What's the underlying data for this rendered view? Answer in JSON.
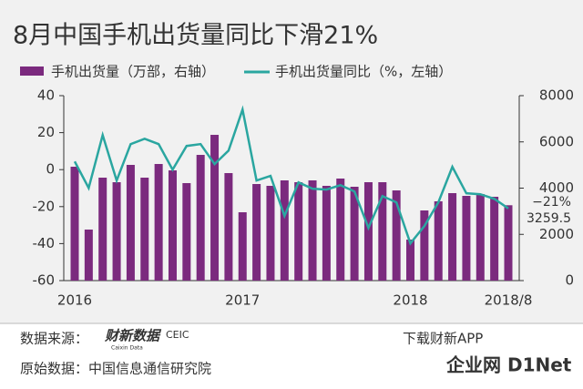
{
  "chart_data": {
    "type": "bar_line",
    "title": "8月中国手机出货量同比下滑21%",
    "categories": [
      "2016",
      null,
      null,
      null,
      null,
      null,
      null,
      null,
      null,
      null,
      null,
      null,
      "2017",
      null,
      null,
      null,
      null,
      null,
      null,
      null,
      null,
      null,
      null,
      null,
      "2018",
      null,
      null,
      null,
      null,
      null,
      null,
      "2018/8"
    ],
    "series": [
      {
        "name": "手机出货量（万部，右轴）",
        "type": "bar",
        "axis": "y2",
        "color": "#7b2a7e",
        "values": [
          4926,
          2207,
          4453,
          4256,
          5005,
          4453,
          5044,
          4768,
          4217,
          5438,
          6305,
          4650,
          2956,
          4177,
          4099,
          4335,
          4256,
          4335,
          4099,
          4414,
          4059,
          4256,
          4256,
          3901,
          1773,
          3034,
          3429,
          3783,
          3665,
          3744,
          3626,
          3259.5
        ],
        "value_labels": [
          null,
          null,
          null,
          null,
          null,
          null,
          null,
          null,
          null,
          null,
          null,
          null,
          null,
          null,
          null,
          null,
          null,
          null,
          null,
          null,
          null,
          null,
          null,
          null,
          null,
          null,
          null,
          null,
          null,
          null,
          null,
          "3259.5"
        ]
      },
      {
        "name": "手机出货量同比（%，左轴）",
        "type": "line",
        "color": "#2aa6a0",
        "values": [
          4.4,
          -9.9,
          18.7,
          -5.9,
          13.8,
          16.7,
          13.8,
          0,
          12.8,
          13.8,
          3,
          10.3,
          32.5,
          -5.9,
          -3.4,
          -25,
          -6.9,
          -10.3,
          -10.8,
          -8.4,
          -11.8,
          -31.5,
          -14.3,
          -17.7,
          -39.9,
          -30.5,
          -17.7,
          1.5,
          -12.8,
          -13.3,
          -15.8,
          -21
        ],
        "value_labels": [
          null,
          null,
          null,
          null,
          null,
          null,
          null,
          null,
          null,
          null,
          null,
          null,
          null,
          null,
          null,
          null,
          null,
          null,
          null,
          null,
          null,
          null,
          null,
          null,
          null,
          null,
          null,
          null,
          null,
          null,
          null,
          "−21%"
        ]
      }
    ],
    "ylim": [
      -60,
      40
    ],
    "yticks": [
      -60,
      -40,
      -20,
      0,
      20,
      40
    ],
    "y2lim": [
      0,
      8000
    ],
    "y2ticks": [
      0,
      2000,
      4000,
      6000,
      8000
    ]
  },
  "footer": {
    "source_label": "数据来源：",
    "logo": "财新数据",
    "logo_sub": "Caixin Data",
    "ceic": "CEIC",
    "download": "下载财新APP",
    "origin": "原始数据：中国信息通信研究院",
    "watermark": "企业网 D1Net"
  }
}
